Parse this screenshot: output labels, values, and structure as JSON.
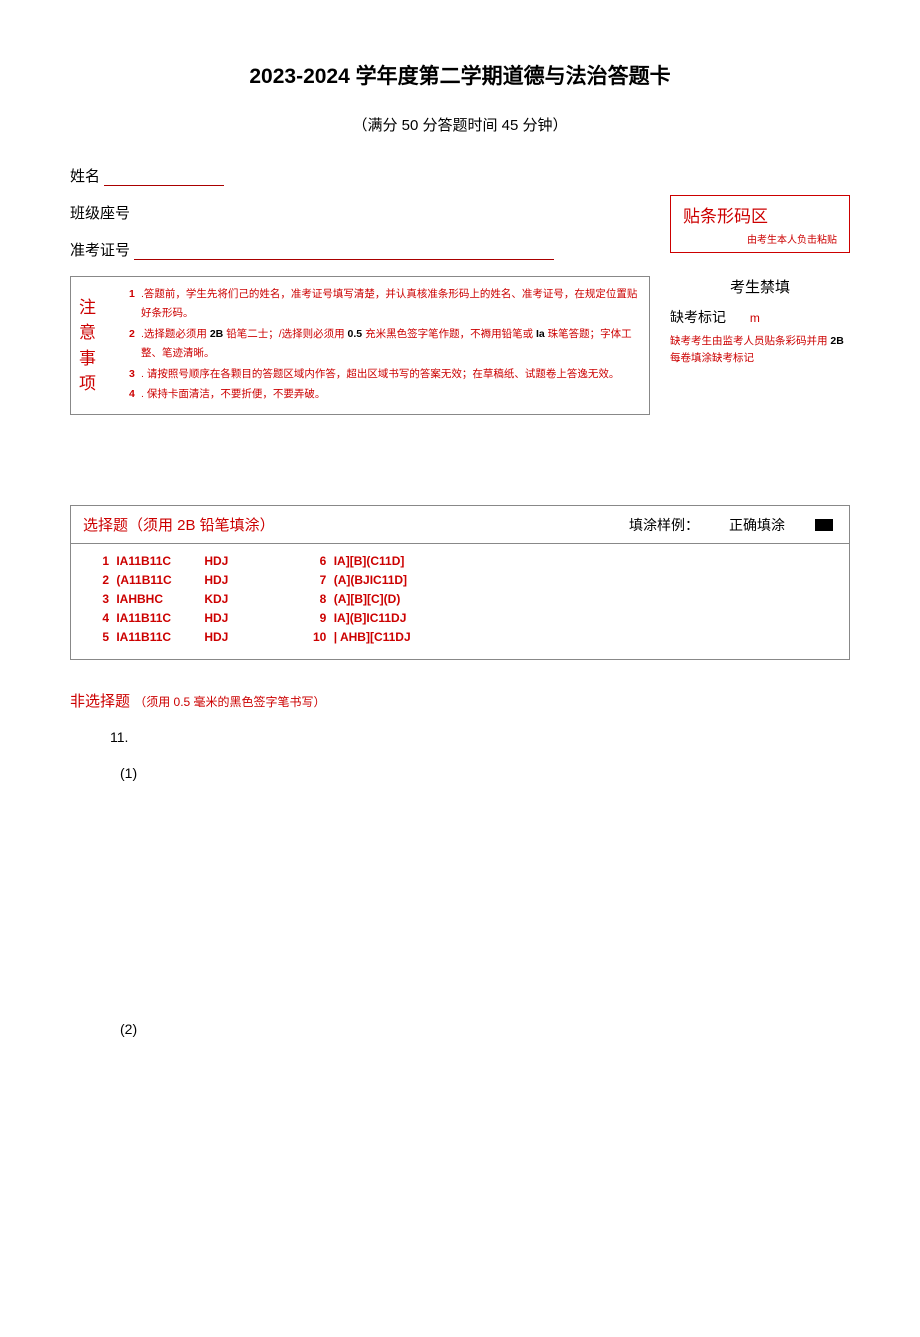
{
  "title": "2023-2024 学年度第二学期道德与法治答题卡",
  "subtitle": "（满分 50 分答题时间 45 分钟）",
  "fields": {
    "name_label": "姓名",
    "class_seat_label": "班级座号",
    "ticket_label": "准考证号"
  },
  "barcode": {
    "title": "贴条形码区",
    "note": "由考生本人负击粘贴"
  },
  "notice": {
    "label_line1": "注意",
    "label_line2": "事项",
    "items": [
      {
        "num": "1",
        "text": ".答题前，学生先将们己的姓名，准考证号填写清楚，并认真核准条形码上的姓名、准考证号，在规定位置贴好条形码。"
      },
      {
        "num": "2",
        "prefix": ".选择题必须用 ",
        "bold1": "2B",
        "mid1": " 铅笔二士；/选择则必须用 ",
        "bold2": "0.5",
        "mid2": " 充米黑色签字笔",
        "red": "作题",
        "mid3": "，不褥用铅笔或 ",
        "bold3": "Ia",
        "suffix": " 珠笔答题；字体工整、笔迹清晰。"
      },
      {
        "num": "3",
        "text": ". 请按照号顺序在各颗目的答题区域内作答，超出区域书写的答案无效；在草稿纸、试题卷上答逸无效。"
      },
      {
        "num": "4",
        "text": ". 保持卡面清洁，不要折便，不要弄破。"
      }
    ]
  },
  "examinee": {
    "title": "考生禁填",
    "absent_label": "缺考标记",
    "absent_mark": "m",
    "note_prefix": "缺考考生由监考人员贴条彩码并用 ",
    "note_bold": "2B",
    "note_suffix": " 每卷填涂缺考标记"
  },
  "choice": {
    "header_left": "选择题（须用 2B 铅笔填涂）",
    "fill_sample_label": "填涂样例：",
    "correct_fill_label": "正确填涂",
    "col1": [
      {
        "num": "1",
        "opts": "IA11B11C",
        "extra": "HDJ"
      },
      {
        "num": "2",
        "opts": "(A11B11C",
        "extra": "HDJ"
      },
      {
        "num": "3",
        "opts": "IAHBHC",
        "extra": "KDJ"
      },
      {
        "num": "4",
        "opts": "IA11B11C",
        "extra": "HDJ"
      },
      {
        "num": "5",
        "opts": "IA11B11C",
        "extra": "HDJ"
      }
    ],
    "col2": [
      {
        "num": "6",
        "opts": "IA][B](C11D]"
      },
      {
        "num": "7",
        "opts": "(A](BJIC11D]"
      },
      {
        "num": "8",
        "opts": "(A][B][C](D)"
      },
      {
        "num": "9",
        "opts": "IA](B]IC11DJ"
      },
      {
        "num": "10",
        "opts": "| AHB][C11DJ"
      }
    ]
  },
  "non_choice": {
    "title": "非选择题",
    "subtitle": "（须用 0.5 毫米的黑色签字笔书写）",
    "q_num": "11.",
    "sub1": "(1)",
    "sub2": "(2)"
  }
}
